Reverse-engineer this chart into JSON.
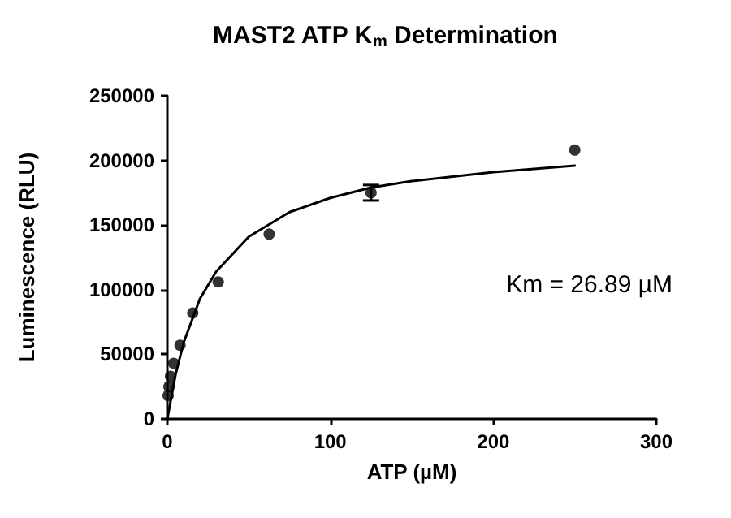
{
  "chart_data": {
    "type": "scatter",
    "title": "MAST2 ATP K$_{m}$ Determination",
    "xlabel": "ATP (µM)",
    "ylabel": "Luminescence (RLU)",
    "xlim": [
      0,
      300
    ],
    "xticks": [
      0,
      100,
      200,
      300
    ],
    "ylim": [
      0,
      250000
    ],
    "yticks": [
      0,
      50000,
      100000,
      150000,
      200000,
      250000
    ],
    "grid": false,
    "annotations": [
      "Km = 26.89 µM"
    ],
    "series": [
      {
        "marker": "circle",
        "color": "#000000",
        "x": [
          0.49,
          0.98,
          1.95,
          3.9,
          7.8,
          15.6,
          31.25,
          62.5,
          125,
          250
        ],
        "values": [
          18000,
          25000,
          33000,
          43000,
          57000,
          82000,
          106000,
          143000,
          175000,
          208000
        ],
        "errors": [
          null,
          null,
          null,
          null,
          null,
          null,
          null,
          null,
          6000,
          null
        ]
      },
      {
        "type": "line",
        "marker": "none",
        "line_style": "solid",
        "color": "#000000",
        "x": [
          0,
          5,
          10,
          20,
          30,
          50,
          75,
          100,
          125,
          150,
          200,
          250
        ],
        "values": [
          0,
          34000,
          59000,
          93000,
          114000,
          141000,
          160000,
          171000,
          179000,
          184000,
          191000,
          196000
        ]
      }
    ]
  }
}
